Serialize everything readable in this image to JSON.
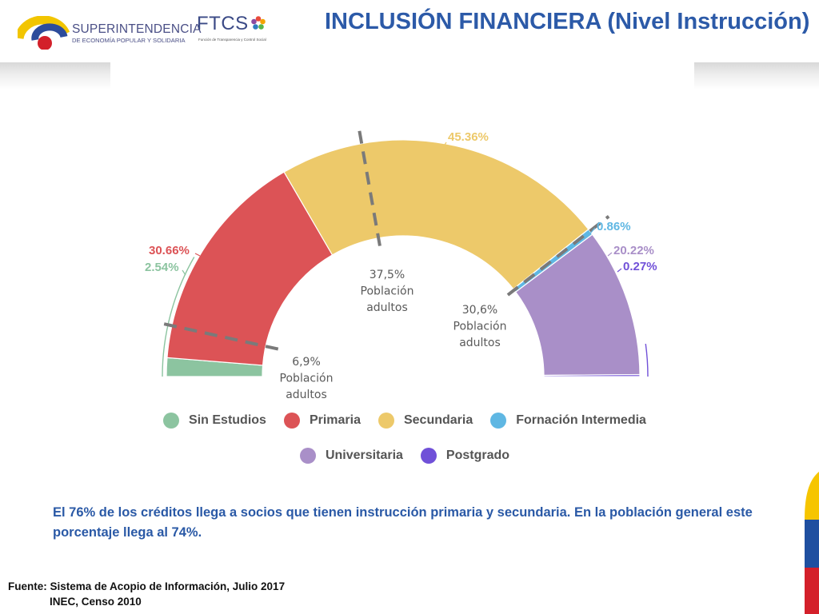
{
  "header": {
    "org_name": "SUPERINTENDENCIA",
    "org_subtitle": "DE ECONOMÍA POPULAR Y SOLIDARIA",
    "ftcs_name": "FTCS",
    "ftcs_subtitle": "Función de Transparencia y Control Social",
    "title": "INCLUSIÓN FINANCIERA (Nivel Instrucción)"
  },
  "chart_data": {
    "type": "pie",
    "series": [
      {
        "name": "Sin Estudios",
        "value": 2.54,
        "label": "2.54%",
        "color": "#8cc4a0"
      },
      {
        "name": "Primaria",
        "value": 30.66,
        "label": "30.66%",
        "color": "#dc5356"
      },
      {
        "name": "Secundaria",
        "value": 45.36,
        "label": "45.36%",
        "color": "#edc96a"
      },
      {
        "name": "Fornación Intermedia",
        "value": 0.86,
        "label": "0.86%",
        "color": "#5fb7e3"
      },
      {
        "name": "Universitaria",
        "value": 20.22,
        "label": "20.22%",
        "color": "#a98fc8"
      },
      {
        "name": "Postgrado",
        "value": 0.27,
        "label": "0.27%",
        "color": "#7050d8"
      }
    ],
    "population_annotations": [
      {
        "value": "6,9%",
        "text1": "Población",
        "text2": "adultos"
      },
      {
        "value": "37,5%",
        "text1": "Población",
        "text2": "adultos"
      },
      {
        "value": "30,6%",
        "text1": "Población",
        "text2": "adultos"
      }
    ],
    "population_cumulative_pct": [
      6.9,
      44.4
    ]
  },
  "note": "El 76% de los créditos llega a socios que tienen instrucción primaria y secundaria. En la población general este porcentaje llega al 74%.",
  "source": {
    "line1": "Fuente: Sistema de Acopio de Información, Julio 2017",
    "line2": "INEC, Censo 2010"
  },
  "flag_colors": [
    "#f6c500",
    "#1f4fa0",
    "#d4202a"
  ]
}
